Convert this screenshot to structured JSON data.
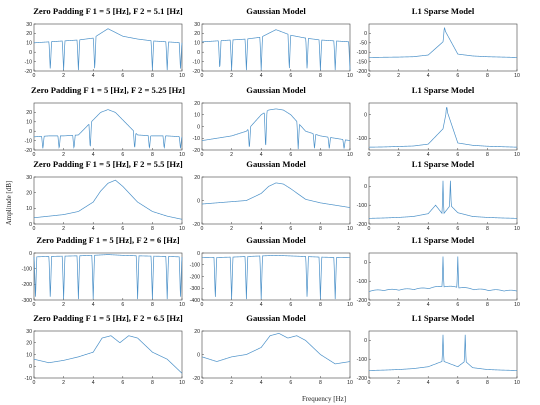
{
  "figure": {
    "ylabel": "Amplitude [dB]",
    "xlabel": "Frequency [Hz]",
    "line_color": "#4a90c8"
  },
  "chart_data": [
    {
      "type": "line",
      "title": "Zero Padding F 1 = 5 [Hz], F 2 = 5.1 [Hz]",
      "xlim": [
        0,
        10
      ],
      "ylim": [
        -20,
        30
      ],
      "xticks": [
        "0",
        "2",
        "4",
        "6",
        "8",
        "10"
      ],
      "yticks": [
        "30",
        "20",
        "10",
        "0",
        "-10",
        "-20"
      ],
      "x": [
        0,
        1,
        2,
        3,
        4,
        5,
        6,
        7,
        8,
        9,
        10
      ],
      "y": [
        10,
        11,
        12,
        13,
        15,
        25,
        17,
        14,
        12,
        11,
        10
      ],
      "nulls": [
        1.1,
        2.0,
        3.0,
        4.1,
        8.0,
        9.0,
        9.9
      ]
    },
    {
      "type": "line",
      "title": "Gaussian Model",
      "xlim": [
        0,
        10
      ],
      "ylim": [
        -20,
        30
      ],
      "xticks": [
        "0",
        "2",
        "4",
        "6",
        "8",
        "10"
      ],
      "yticks": [
        "30",
        "20",
        "10",
        "0",
        "-10",
        "-20"
      ],
      "x": [
        0,
        1,
        2,
        3,
        4,
        5,
        6,
        7,
        8,
        9,
        10
      ],
      "y": [
        11,
        12,
        13,
        14,
        16,
        24,
        18,
        15,
        13,
        12,
        11
      ],
      "nulls": [
        1.2,
        2.0,
        3.0,
        4.0,
        5.9,
        7.1,
        8.0,
        9.0,
        10.0
      ]
    },
    {
      "type": "line",
      "title": "L1 Sparse Model",
      "xlim": [
        0,
        10
      ],
      "ylim": [
        -200,
        50
      ],
      "xticks": [
        "0",
        "2",
        "4",
        "6",
        "8",
        "10"
      ],
      "yticks": [
        "0",
        "-50",
        "-100",
        "-150",
        "-200"
      ],
      "x": [
        0,
        1,
        2,
        3,
        4,
        5,
        5.1,
        6,
        7,
        8,
        9,
        10
      ],
      "y": [
        -128,
        -127,
        -126,
        -124,
        -115,
        -45,
        20,
        -110,
        -120,
        -124,
        -126,
        -128
      ],
      "peaks": [
        5.1
      ]
    },
    {
      "type": "line",
      "title": "Zero Padding F 1 = 5 [Hz], F 2 = 5.25 [Hz]",
      "xlim": [
        0,
        10
      ],
      "ylim": [
        -20,
        30
      ],
      "xticks": [
        "0",
        "2",
        "4",
        "6",
        "8",
        "10"
      ],
      "yticks": [
        "20",
        "10",
        "0",
        "-10",
        "-20"
      ],
      "x": [
        0,
        1,
        2,
        3,
        4,
        4.5,
        5,
        5.5,
        6,
        7,
        8,
        9,
        10
      ],
      "y": [
        -6,
        -5,
        -5,
        -4,
        12,
        20,
        23,
        20,
        12,
        -4,
        -5,
        -5,
        -6
      ],
      "nulls": [
        0.6,
        1.7,
        2.7,
        3.8,
        6.8,
        7.8,
        8.8,
        9.9
      ]
    },
    {
      "type": "line",
      "title": "Gaussian Model",
      "xlim": [
        0,
        10
      ],
      "ylim": [
        -20,
        20
      ],
      "xticks": [
        "0",
        "2",
        "4",
        "6",
        "8",
        "10"
      ],
      "yticks": [
        "20",
        "10",
        "0",
        "-10",
        "-20"
      ],
      "x": [
        0,
        1,
        2,
        3,
        4,
        4.5,
        5,
        5.5,
        6,
        7,
        8,
        9,
        10
      ],
      "y": [
        -12,
        -10,
        -8,
        -4,
        10,
        14,
        15,
        14,
        10,
        -4,
        -8,
        -10,
        -12
      ],
      "nulls": [
        3.2,
        4.3,
        6.5,
        7.6,
        8.6,
        9.6
      ]
    },
    {
      "type": "line",
      "title": "L1 Sparse Model",
      "xlim": [
        0,
        10
      ],
      "ylim": [
        -150,
        50
      ],
      "xticks": [
        "0",
        "2",
        "4",
        "6",
        "8",
        "10"
      ],
      "yticks": [
        "0",
        "-100"
      ],
      "x": [
        0,
        1,
        2,
        3,
        4,
        5,
        5.25,
        6,
        7,
        8,
        9,
        10
      ],
      "y": [
        -138,
        -137,
        -135,
        -133,
        -125,
        -60,
        20,
        -120,
        -130,
        -134,
        -136,
        -138
      ],
      "peaks": [
        5.25
      ]
    },
    {
      "type": "line",
      "title": "Zero Padding F 1 = 5 [Hz], F 2 = 5.5 [Hz]",
      "xlim": [
        0,
        10
      ],
      "ylim": [
        0,
        30
      ],
      "xticks": [
        "0",
        "2",
        "4",
        "6",
        "8",
        "10"
      ],
      "yticks": [
        "30",
        "20",
        "10",
        "0"
      ],
      "x": [
        0,
        1,
        2,
        3,
        4,
        4.5,
        5,
        5.5,
        6,
        7,
        8,
        9,
        10
      ],
      "y": [
        4,
        5,
        6,
        8,
        14,
        21,
        26,
        28,
        24,
        14,
        8,
        5,
        3
      ],
      "nulls": []
    },
    {
      "type": "line",
      "title": "Gaussian Model",
      "xlim": [
        0,
        10
      ],
      "ylim": [
        -20,
        20
      ],
      "xticks": [
        "0",
        "2",
        "4",
        "6",
        "8",
        "10"
      ],
      "yticks": [
        "20",
        "0",
        "-20"
      ],
      "x": [
        0,
        1,
        2,
        3,
        4,
        4.5,
        5,
        5.5,
        6,
        7,
        8,
        9,
        10
      ],
      "y": [
        -3,
        -2,
        -1,
        0,
        6,
        12,
        15,
        14,
        10,
        1,
        -2,
        -4,
        -6
      ],
      "nulls": []
    },
    {
      "type": "line",
      "title": "L1 Sparse Model",
      "xlim": [
        0,
        10
      ],
      "ylim": [
        -200,
        50
      ],
      "xticks": [
        "0",
        "2",
        "4",
        "6",
        "8",
        "10"
      ],
      "yticks": [
        "0",
        "-100",
        "-200"
      ],
      "x": [
        0,
        1,
        2,
        3,
        4,
        4.5,
        5,
        5.5,
        6,
        7,
        8,
        9,
        10
      ],
      "y": [
        -170,
        -168,
        -165,
        -160,
        -145,
        -100,
        -150,
        -100,
        -140,
        -160,
        -165,
        -168,
        -170
      ],
      "peaks": [
        5.0,
        5.5
      ]
    },
    {
      "type": "line",
      "title": "Zero Padding F 1 = 5 [Hz], F 2 = 6 [Hz]",
      "xlim": [
        0,
        10
      ],
      "ylim": [
        -300,
        0
      ],
      "xticks": [
        "0",
        "2",
        "4",
        "6",
        "8",
        "10"
      ],
      "yticks": [
        "0",
        "-100",
        "-200",
        "-300"
      ],
      "x": [
        0,
        1,
        2,
        3,
        4,
        5,
        6,
        7,
        8,
        9,
        10
      ],
      "y": [
        -25,
        -22,
        -20,
        -18,
        -15,
        -10,
        -15,
        -18,
        -20,
        -22,
        -25
      ],
      "nulls": [
        0.1,
        1.1,
        2.0,
        3.0,
        4.0,
        7.0,
        8.0,
        9.0,
        9.9
      ]
    },
    {
      "type": "line",
      "title": "Gaussian Model",
      "xlim": [
        0,
        10
      ],
      "ylim": [
        -400,
        0
      ],
      "xticks": [
        "0",
        "2",
        "4",
        "6",
        "8",
        "10"
      ],
      "yticks": [
        "0",
        "-100",
        "-200",
        "-300",
        "-400"
      ],
      "x": [
        0,
        1,
        2,
        3,
        4,
        5,
        6,
        7,
        8,
        9,
        10
      ],
      "y": [
        -40,
        -38,
        -35,
        -30,
        -25,
        -20,
        -25,
        -30,
        -35,
        -38,
        -40
      ],
      "nulls": [
        0.9,
        2.0,
        3.0,
        4.0,
        7.1,
        8.0,
        9.0
      ]
    },
    {
      "type": "line",
      "title": "L1 Sparse Model",
      "xlim": [
        0,
        10
      ],
      "ylim": [
        -200,
        50
      ],
      "xticks": [
        "0",
        "2",
        "4",
        "6",
        "8",
        "10"
      ],
      "yticks": [
        "0",
        "-100",
        "-200"
      ],
      "x": [
        0,
        1,
        2,
        3,
        4,
        5,
        6,
        7,
        8,
        9,
        10
      ],
      "y": [
        -155,
        -150,
        -148,
        -145,
        -140,
        -130,
        -135,
        -145,
        -150,
        -152,
        -155
      ],
      "peaks": [
        5.0,
        6.0
      ],
      "ripples": true
    },
    {
      "type": "line",
      "title": "Zero Padding F 1 = 5 [Hz], F 2 = 6.5 [Hz]",
      "xlim": [
        0,
        10
      ],
      "ylim": [
        -10,
        30
      ],
      "xticks": [
        "0",
        "2",
        "4",
        "6",
        "8",
        "10"
      ],
      "yticks": [
        "30",
        "20",
        "10",
        "0",
        "-10"
      ],
      "x": [
        0,
        1,
        2,
        3,
        4,
        4.6,
        5.2,
        5.8,
        6.4,
        7,
        8,
        9,
        10
      ],
      "y": [
        6,
        3,
        5,
        8,
        12,
        24,
        26,
        20,
        26,
        24,
        12,
        6,
        -6
      ],
      "nulls": []
    },
    {
      "type": "line",
      "title": "Gaussian Model",
      "xlim": [
        0,
        10
      ],
      "ylim": [
        -20,
        20
      ],
      "xticks": [
        "0",
        "2",
        "4",
        "6",
        "8",
        "10"
      ],
      "yticks": [
        "20",
        "0",
        "-20"
      ],
      "x": [
        0,
        1,
        2,
        3,
        4,
        4.6,
        5.2,
        5.8,
        6.4,
        7,
        8,
        9,
        10
      ],
      "y": [
        -2,
        -6,
        -2,
        0,
        6,
        16,
        18,
        14,
        16,
        12,
        0,
        -8,
        -6
      ],
      "nulls": []
    },
    {
      "type": "line",
      "title": "L1 Sparse Model",
      "xlim": [
        0,
        10
      ],
      "ylim": [
        -200,
        50
      ],
      "xticks": [
        "0",
        "2",
        "4",
        "6",
        "8",
        "10"
      ],
      "yticks": [
        "0",
        "-100",
        "-200"
      ],
      "x": [
        0,
        1,
        2,
        3,
        4,
        5,
        6,
        6.5,
        7,
        8,
        9,
        10
      ],
      "y": [
        -160,
        -158,
        -155,
        -150,
        -140,
        -110,
        -140,
        -110,
        -145,
        -155,
        -158,
        -160
      ],
      "peaks": [
        5.0,
        6.5
      ]
    }
  ]
}
